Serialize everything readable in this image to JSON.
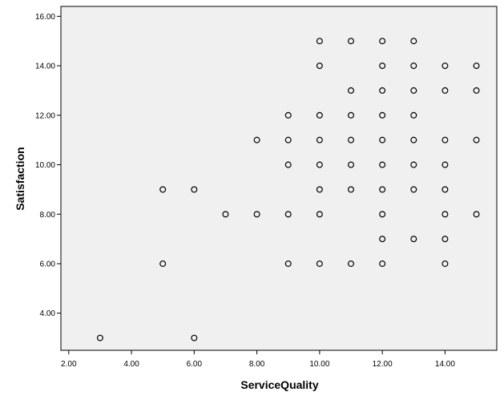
{
  "chart_data": {
    "type": "scatter",
    "title": "",
    "xlabel": "ServiceQuality",
    "ylabel": "Satisfaction",
    "xlim": [
      1.75,
      15.65
    ],
    "ylim": [
      2.5,
      16.4
    ],
    "xticks": [
      2,
      4,
      6,
      8,
      10,
      12,
      14
    ],
    "xtick_labels": [
      "2.00",
      "4.00",
      "6.00",
      "8.00",
      "10.00",
      "12.00",
      "14.00"
    ],
    "yticks": [
      4,
      6,
      8,
      10,
      12,
      14,
      16
    ],
    "ytick_labels": [
      "4.00",
      "6.00",
      "8.00",
      "10.00",
      "12.00",
      "14.00",
      "16.00"
    ],
    "grid": false,
    "colors": {
      "plot_background": "#f0f0f0",
      "marker_edge": "#000000"
    },
    "points": [
      {
        "x": 3,
        "y": 3
      },
      {
        "x": 6,
        "y": 3
      },
      {
        "x": 5,
        "y": 6
      },
      {
        "x": 9,
        "y": 6
      },
      {
        "x": 10,
        "y": 6
      },
      {
        "x": 11,
        "y": 6
      },
      {
        "x": 12,
        "y": 6
      },
      {
        "x": 14,
        "y": 6
      },
      {
        "x": 12,
        "y": 7
      },
      {
        "x": 13,
        "y": 7
      },
      {
        "x": 14,
        "y": 7
      },
      {
        "x": 7,
        "y": 8
      },
      {
        "x": 8,
        "y": 8
      },
      {
        "x": 9,
        "y": 8
      },
      {
        "x": 10,
        "y": 8
      },
      {
        "x": 12,
        "y": 8
      },
      {
        "x": 14,
        "y": 8
      },
      {
        "x": 15,
        "y": 8
      },
      {
        "x": 5,
        "y": 9
      },
      {
        "x": 6,
        "y": 9
      },
      {
        "x": 10,
        "y": 9
      },
      {
        "x": 11,
        "y": 9
      },
      {
        "x": 12,
        "y": 9
      },
      {
        "x": 13,
        "y": 9
      },
      {
        "x": 14,
        "y": 9
      },
      {
        "x": 9,
        "y": 10
      },
      {
        "x": 10,
        "y": 10
      },
      {
        "x": 11,
        "y": 10
      },
      {
        "x": 12,
        "y": 10
      },
      {
        "x": 13,
        "y": 10
      },
      {
        "x": 14,
        "y": 10
      },
      {
        "x": 8,
        "y": 11
      },
      {
        "x": 9,
        "y": 11
      },
      {
        "x": 10,
        "y": 11
      },
      {
        "x": 11,
        "y": 11
      },
      {
        "x": 12,
        "y": 11
      },
      {
        "x": 13,
        "y": 11
      },
      {
        "x": 14,
        "y": 11
      },
      {
        "x": 15,
        "y": 11
      },
      {
        "x": 9,
        "y": 12
      },
      {
        "x": 10,
        "y": 12
      },
      {
        "x": 11,
        "y": 12
      },
      {
        "x": 12,
        "y": 12
      },
      {
        "x": 13,
        "y": 12
      },
      {
        "x": 11,
        "y": 13
      },
      {
        "x": 12,
        "y": 13
      },
      {
        "x": 13,
        "y": 13
      },
      {
        "x": 14,
        "y": 13
      },
      {
        "x": 15,
        "y": 13
      },
      {
        "x": 10,
        "y": 14
      },
      {
        "x": 12,
        "y": 14
      },
      {
        "x": 13,
        "y": 14
      },
      {
        "x": 14,
        "y": 14
      },
      {
        "x": 15,
        "y": 14
      },
      {
        "x": 10,
        "y": 15
      },
      {
        "x": 11,
        "y": 15
      },
      {
        "x": 12,
        "y": 15
      },
      {
        "x": 13,
        "y": 15
      }
    ]
  }
}
